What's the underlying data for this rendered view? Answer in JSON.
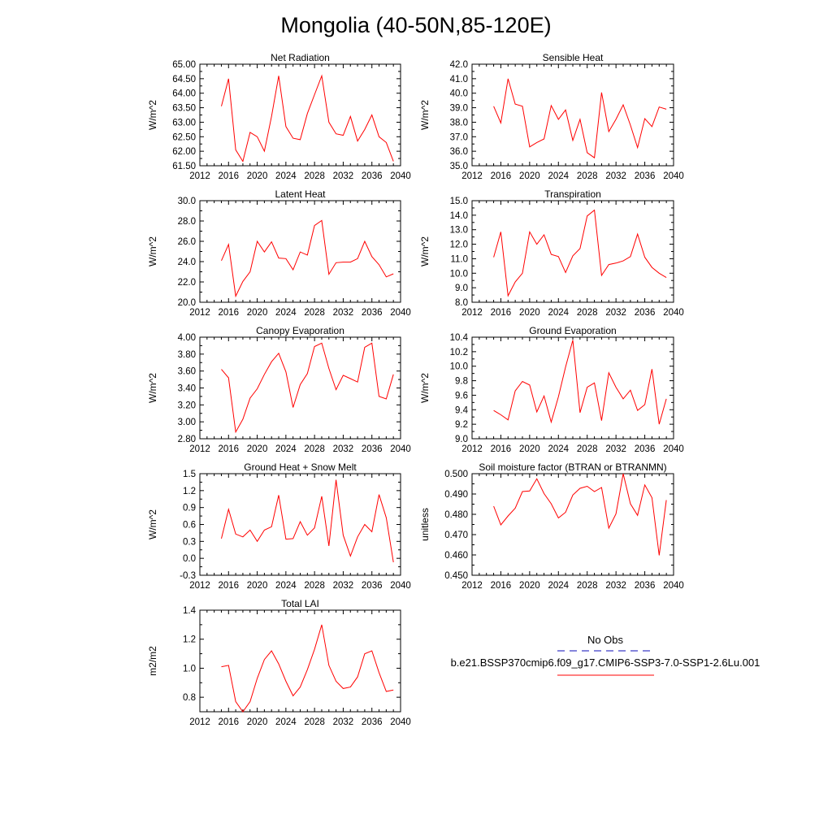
{
  "page": {
    "title": "Mongolia (40-50N,85-120E)"
  },
  "legend": {
    "obs_label": "No Obs",
    "obs_color": "#3c3cc8",
    "run_label": "b.e21.BSSP370cmip6.f09_g17.CMIP6-SSP3-7.0-SSP1-2.6Lu.001",
    "run_color": "#ff0000"
  },
  "chart_data": [
    {
      "type": "line",
      "title": "Net Radiation",
      "ylabel": "W/m^2",
      "xlim": [
        2012,
        2040
      ],
      "ylim": [
        61.5,
        65.0
      ],
      "xticks": [
        "2012",
        "2016",
        "2020",
        "2024",
        "2028",
        "2032",
        "2036",
        "2040"
      ],
      "yticks": [
        "61.50",
        "62.00",
        "62.50",
        "63.00",
        "63.50",
        "64.00",
        "64.50",
        "65.00"
      ],
      "x": [
        2015,
        2016,
        2017,
        2018,
        2019,
        2020,
        2021,
        2022,
        2023,
        2024,
        2025,
        2026,
        2027,
        2028,
        2029,
        2030,
        2031,
        2032,
        2033,
        2034,
        2035,
        2036,
        2037,
        2038,
        2039
      ],
      "series": [
        {
          "values": [
            63.55,
            64.5,
            62.05,
            61.65,
            62.65,
            62.5,
            62.0,
            63.2,
            64.6,
            62.85,
            62.45,
            62.4,
            63.3,
            63.95,
            64.6,
            63.0,
            62.6,
            62.55,
            63.2,
            62.35,
            62.75,
            63.25,
            62.5,
            62.3,
            61.65
          ]
        }
      ]
    },
    {
      "type": "line",
      "title": "Sensible Heat",
      "ylabel": "W/m^2",
      "xlim": [
        2012,
        2040
      ],
      "ylim": [
        35.0,
        42.0
      ],
      "xticks": [
        "2012",
        "2016",
        "2020",
        "2024",
        "2028",
        "2032",
        "2036",
        "2040"
      ],
      "yticks": [
        "35.0",
        "36.0",
        "37.0",
        "38.0",
        "39.0",
        "40.0",
        "41.0",
        "42.0"
      ],
      "x": [
        2015,
        2016,
        2017,
        2018,
        2019,
        2020,
        2021,
        2022,
        2023,
        2024,
        2025,
        2026,
        2027,
        2028,
        2029,
        2030,
        2031,
        2032,
        2033,
        2034,
        2035,
        2036,
        2037,
        2038,
        2039
      ],
      "series": [
        {
          "values": [
            39.1,
            37.95,
            41.0,
            39.25,
            39.1,
            36.3,
            36.6,
            36.85,
            39.15,
            38.2,
            38.85,
            36.75,
            38.2,
            35.9,
            35.55,
            40.05,
            37.35,
            38.2,
            39.2,
            37.8,
            36.25,
            38.25,
            37.7,
            39.05,
            38.9
          ]
        }
      ]
    },
    {
      "type": "line",
      "title": "Latent Heat",
      "ylabel": "W/m^2",
      "xlim": [
        2012,
        2040
      ],
      "ylim": [
        20.0,
        30.0
      ],
      "xticks": [
        "2012",
        "2016",
        "2020",
        "2024",
        "2028",
        "2032",
        "2036",
        "2040"
      ],
      "yticks": [
        "20.0",
        "22.0",
        "24.0",
        "26.0",
        "28.0",
        "30.0"
      ],
      "x": [
        2015,
        2016,
        2017,
        2018,
        2019,
        2020,
        2021,
        2022,
        2023,
        2024,
        2025,
        2026,
        2027,
        2028,
        2029,
        2030,
        2031,
        2032,
        2033,
        2034,
        2035,
        2036,
        2037,
        2038,
        2039
      ],
      "series": [
        {
          "values": [
            24.1,
            25.7,
            20.6,
            22.05,
            23.0,
            26.0,
            24.95,
            25.95,
            24.35,
            24.3,
            23.2,
            24.95,
            24.65,
            27.55,
            28.05,
            22.75,
            23.9,
            23.95,
            23.95,
            24.3,
            26.0,
            24.5,
            23.7,
            22.5,
            22.8
          ]
        }
      ]
    },
    {
      "type": "line",
      "title": "Transpiration",
      "ylabel": "W/m^2",
      "xlim": [
        2012,
        2040
      ],
      "ylim": [
        8.0,
        15.0
      ],
      "xticks": [
        "2012",
        "2016",
        "2020",
        "2024",
        "2028",
        "2032",
        "2036",
        "2040"
      ],
      "yticks": [
        "8.0",
        "9.0",
        "10.0",
        "11.0",
        "12.0",
        "13.0",
        "14.0",
        "15.0"
      ],
      "x": [
        2015,
        2016,
        2017,
        2018,
        2019,
        2020,
        2021,
        2022,
        2023,
        2024,
        2025,
        2026,
        2027,
        2028,
        2029,
        2030,
        2031,
        2032,
        2033,
        2034,
        2035,
        2036,
        2037,
        2038,
        2039
      ],
      "series": [
        {
          "values": [
            11.1,
            12.85,
            8.45,
            9.4,
            10.0,
            12.85,
            12.0,
            12.65,
            11.3,
            11.15,
            10.05,
            11.2,
            11.7,
            13.95,
            14.35,
            9.85,
            10.6,
            10.7,
            10.85,
            11.15,
            12.7,
            11.1,
            10.4,
            10.0,
            9.7
          ]
        }
      ]
    },
    {
      "type": "line",
      "title": "Canopy Evaporation",
      "ylabel": "W/m^2",
      "xlim": [
        2012,
        2040
      ],
      "ylim": [
        2.8,
        4.0
      ],
      "xticks": [
        "2012",
        "2016",
        "2020",
        "2024",
        "2028",
        "2032",
        "2036",
        "2040"
      ],
      "yticks": [
        "2.80",
        "3.00",
        "3.20",
        "3.40",
        "3.60",
        "3.80",
        "4.00"
      ],
      "x": [
        2015,
        2016,
        2017,
        2018,
        2019,
        2020,
        2021,
        2022,
        2023,
        2024,
        2025,
        2026,
        2027,
        2028,
        2029,
        2030,
        2031,
        2032,
        2033,
        2034,
        2035,
        2036,
        2037,
        2038,
        2039
      ],
      "series": [
        {
          "values": [
            3.62,
            3.52,
            2.88,
            3.03,
            3.28,
            3.39,
            3.56,
            3.71,
            3.81,
            3.59,
            3.17,
            3.44,
            3.57,
            3.89,
            3.93,
            3.63,
            3.38,
            3.55,
            3.51,
            3.47,
            3.88,
            3.93,
            3.3,
            3.27,
            3.56
          ]
        }
      ]
    },
    {
      "type": "line",
      "title": "Ground Evaporation",
      "ylabel": "W/m^2",
      "xlim": [
        2012,
        2040
      ],
      "ylim": [
        9.0,
        10.4
      ],
      "xticks": [
        "2012",
        "2016",
        "2020",
        "2024",
        "2028",
        "2032",
        "2036",
        "2040"
      ],
      "yticks": [
        "9.0",
        "9.2",
        "9.4",
        "9.6",
        "9.8",
        "10.0",
        "10.2",
        "10.4"
      ],
      "x": [
        2015,
        2016,
        2017,
        2018,
        2019,
        2020,
        2021,
        2022,
        2023,
        2024,
        2025,
        2026,
        2027,
        2028,
        2029,
        2030,
        2031,
        2032,
        2033,
        2034,
        2035,
        2036,
        2037,
        2038,
        2039
      ],
      "series": [
        {
          "values": [
            9.39,
            9.33,
            9.26,
            9.66,
            9.79,
            9.74,
            9.37,
            9.59,
            9.23,
            9.58,
            9.99,
            10.36,
            9.36,
            9.71,
            9.77,
            9.25,
            9.91,
            9.71,
            9.55,
            9.67,
            9.39,
            9.47,
            9.96,
            9.2,
            9.55
          ]
        }
      ]
    },
    {
      "type": "line",
      "title": "Ground Heat + Snow Melt",
      "ylabel": "W/m^2",
      "xlim": [
        2012,
        2040
      ],
      "ylim": [
        -0.3,
        1.5
      ],
      "xticks": [
        "2012",
        "2016",
        "2020",
        "2024",
        "2028",
        "2032",
        "2036",
        "2040"
      ],
      "yticks": [
        "-0.3",
        "0.0",
        "0.3",
        "0.6",
        "0.9",
        "1.2",
        "1.5"
      ],
      "x": [
        2015,
        2016,
        2017,
        2018,
        2019,
        2020,
        2021,
        2022,
        2023,
        2024,
        2025,
        2026,
        2027,
        2028,
        2029,
        2030,
        2031,
        2032,
        2033,
        2034,
        2035,
        2036,
        2037,
        2038,
        2039
      ],
      "series": [
        {
          "values": [
            0.35,
            0.87,
            0.43,
            0.38,
            0.5,
            0.3,
            0.5,
            0.56,
            1.12,
            0.34,
            0.35,
            0.65,
            0.41,
            0.54,
            1.1,
            0.22,
            1.39,
            0.41,
            0.04,
            0.38,
            0.6,
            0.47,
            1.13,
            0.72,
            -0.07
          ]
        }
      ]
    },
    {
      "type": "line",
      "title": "Soil moisture factor (BTRAN or BTRANMN)",
      "ylabel": "unitless",
      "xlim": [
        2012,
        2040
      ],
      "ylim": [
        0.45,
        0.5
      ],
      "xticks": [
        "2012",
        "2016",
        "2020",
        "2024",
        "2028",
        "2032",
        "2036",
        "2040"
      ],
      "yticks": [
        "0.450",
        "0.460",
        "0.470",
        "0.480",
        "0.490",
        "0.500"
      ],
      "x": [
        2015,
        2016,
        2017,
        2018,
        2019,
        2020,
        2021,
        2022,
        2023,
        2024,
        2025,
        2026,
        2027,
        2028,
        2029,
        2030,
        2031,
        2032,
        2033,
        2034,
        2035,
        2036,
        2037,
        2038,
        2039
      ],
      "series": [
        {
          "values": [
            0.484,
            0.4748,
            0.4792,
            0.483,
            0.4912,
            0.4915,
            0.4975,
            0.4902,
            0.4852,
            0.4782,
            0.481,
            0.4895,
            0.4928,
            0.4938,
            0.4912,
            0.4932,
            0.4732,
            0.4802,
            0.5,
            0.4852,
            0.4795,
            0.4945,
            0.4882,
            0.4598,
            0.487
          ]
        }
      ]
    },
    {
      "type": "line",
      "title": "Total LAI",
      "ylabel": "m2/m2",
      "xlim": [
        2012,
        2040
      ],
      "ylim": [
        0.7,
        1.4
      ],
      "xticks": [
        "2012",
        "2016",
        "2020",
        "2024",
        "2028",
        "2032",
        "2036",
        "2040"
      ],
      "yticks": [
        "0.8",
        "1.0",
        "1.2",
        "1.4"
      ],
      "ytick_values": [
        0.8,
        1.0,
        1.2,
        1.4
      ],
      "x": [
        2015,
        2016,
        2017,
        2018,
        2019,
        2020,
        2021,
        2022,
        2023,
        2024,
        2025,
        2026,
        2027,
        2028,
        2029,
        2030,
        2031,
        2032,
        2033,
        2034,
        2035,
        2036,
        2037,
        2038,
        2039
      ],
      "series": [
        {
          "values": [
            1.01,
            1.02,
            0.77,
            0.7,
            0.77,
            0.93,
            1.06,
            1.12,
            1.03,
            0.91,
            0.81,
            0.87,
            0.99,
            1.13,
            1.3,
            1.02,
            0.91,
            0.86,
            0.87,
            0.94,
            1.1,
            1.12,
            0.97,
            0.84,
            0.85
          ]
        }
      ]
    }
  ]
}
